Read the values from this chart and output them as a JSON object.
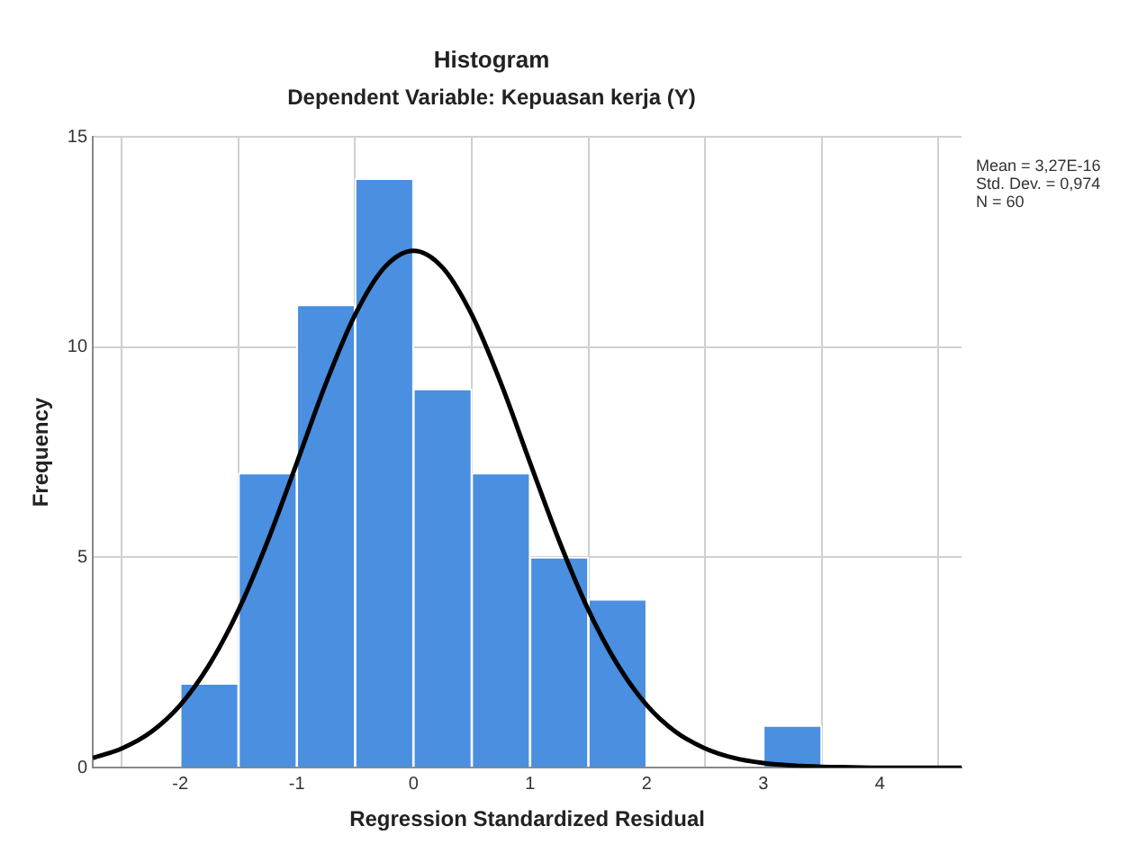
{
  "chart_data": {
    "type": "histogram",
    "title": "Histogram",
    "subtitle": "Dependent Variable: Kepuasan kerja (Y)",
    "xlabel": "Regression Standardized Residual",
    "ylabel": "Frequency",
    "bins": [
      -2,
      -1.5,
      -1,
      -0.5,
      0,
      0.5,
      1,
      1.5,
      2,
      2.5,
      3,
      3.5
    ],
    "values": [
      2,
      7,
      11,
      14,
      9,
      7,
      5,
      4,
      0,
      0,
      1
    ],
    "color": "#4a8fe0",
    "series": [
      {
        "type": "line",
        "color": "#000000",
        "x": [
          -2.75,
          -2.5,
          -2.25,
          -2,
          -1.75,
          -1.5,
          -1.25,
          -1,
          -0.75,
          -0.5,
          -0.25,
          0,
          0.25,
          0.5,
          0.75,
          1,
          1.25,
          1.5,
          1.75,
          2,
          2.25,
          2.5,
          2.75,
          3,
          3.25,
          3.5,
          3.75,
          4,
          4.25,
          4.5,
          4.7
        ],
        "values": [
          0.23,
          0.46,
          0.85,
          1.49,
          2.45,
          3.75,
          5.39,
          7.25,
          9.14,
          10.77,
          11.89,
          12.29,
          11.89,
          10.77,
          9.14,
          7.25,
          5.39,
          3.75,
          2.45,
          1.49,
          0.85,
          0.46,
          0.23,
          0.11,
          0.05,
          0.02,
          0.01,
          0,
          0,
          0,
          0
        ]
      }
    ],
    "xlim": [
      -2.75,
      4.7
    ],
    "xticks": [
      -2,
      -1,
      0,
      1,
      2,
      3,
      4
    ],
    "ylim": [
      0,
      15
    ],
    "yticks": [
      0,
      5,
      10,
      15
    ],
    "grid": true,
    "annotations": [
      "Mean = 3,27E-16",
      "Std. Dev. = 0,974",
      "N = 60"
    ]
  }
}
